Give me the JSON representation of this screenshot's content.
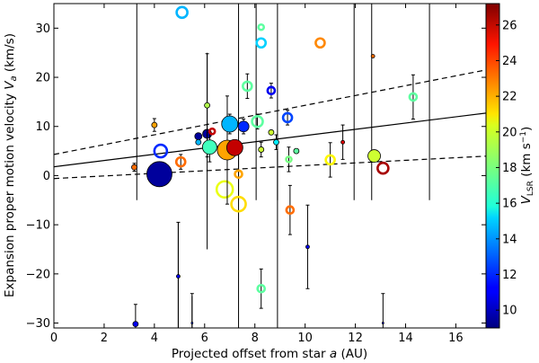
{
  "chart_data": {
    "type": "scatter",
    "xlabel_parts": [
      "Projected offset from star ",
      "a",
      " (AU)"
    ],
    "ylabel_parts": [
      "Expansion proper motion velocity ",
      "V",
      "a",
      " (km/s)"
    ],
    "colorbar_label_parts": [
      "V",
      "LSR",
      " (km s",
      "−1",
      ")"
    ],
    "xlim": [
      0,
      17.2
    ],
    "ylim": [
      -31,
      35
    ],
    "colormap": "jet",
    "clim": [
      9,
      27.2
    ],
    "xticks": [
      0,
      2,
      4,
      6,
      8,
      10,
      12,
      14,
      16
    ],
    "yticks": [
      -30,
      -20,
      -10,
      0,
      10,
      20,
      30
    ],
    "cticks": [
      10,
      12,
      14,
      16,
      18,
      20,
      22,
      24,
      26
    ],
    "fit_line": {
      "intercept": 1.8,
      "slope": 0.635
    },
    "envelope": {
      "upper": {
        "intercept": 4.3,
        "slope": 1.0
      },
      "lower": {
        "intercept": -0.6,
        "slope": 0.265
      }
    },
    "points": [
      {
        "x": 3.2,
        "y": 1.7,
        "v": 23,
        "sz": 3,
        "filled": true,
        "err": 0.8
      },
      {
        "x": 3.25,
        "y": -30.2,
        "v": 11,
        "sz": 3,
        "filled": true,
        "err": 4
      },
      {
        "x": 4.2,
        "y": 0.3,
        "v": 9.5,
        "sz": 14,
        "filled": true,
        "err": 0
      },
      {
        "x": 4.25,
        "y": 5.0,
        "v": 12,
        "sz": 7,
        "filled": false,
        "err": 0
      },
      {
        "x": 4.0,
        "y": 10.3,
        "v": 22,
        "sz": 3,
        "filled": true,
        "err": 1.3
      },
      {
        "x": 4.95,
        "y": -20.5,
        "v": 11,
        "sz": 2,
        "filled": true,
        "err": 11
      },
      {
        "x": 5.05,
        "y": 2.8,
        "v": 23,
        "sz": 5,
        "filled": false,
        "err": 1.5
      },
      {
        "x": 5.1,
        "y": 33.2,
        "v": 14.5,
        "sz": 6,
        "filled": false,
        "err": 0
      },
      {
        "x": 5.5,
        "y": -30,
        "v": 12,
        "sz": 1,
        "filled": true,
        "err": 6
      },
      {
        "x": 5.75,
        "y": 8.0,
        "v": 9.5,
        "sz": 4,
        "filled": true,
        "err": 0
      },
      {
        "x": 5.75,
        "y": 6.8,
        "v": 14.5,
        "sz": 3,
        "filled": true,
        "err": 0
      },
      {
        "x": 6.1,
        "y": 8.5,
        "v": 9.5,
        "sz": 5,
        "filled": true,
        "err": 0
      },
      {
        "x": 6.1,
        "y": 14.3,
        "v": 19,
        "sz": 3,
        "filled": true,
        "err": 10.5
      },
      {
        "x": 6.2,
        "y": 5.8,
        "v": 17,
        "sz": 8,
        "filled": true,
        "err": 3
      },
      {
        "x": 6.3,
        "y": 9.0,
        "v": 26,
        "sz": 3,
        "filled": false,
        "err": 0
      },
      {
        "x": 6.8,
        "y": -2.8,
        "v": 20,
        "sz": 9,
        "filled": false,
        "err": 0
      },
      {
        "x": 6.9,
        "y": 5.2,
        "v": 22,
        "sz": 11,
        "filled": true,
        "err": 11
      },
      {
        "x": 7.0,
        "y": 10.5,
        "v": 14.5,
        "sz": 9,
        "filled": true,
        "err": 2
      },
      {
        "x": 7.2,
        "y": 5.7,
        "v": 26,
        "sz": 9,
        "filled": true,
        "err": 0
      },
      {
        "x": 7.35,
        "y": 0.3,
        "v": 22,
        "sz": 4,
        "filled": false,
        "err": 0
      },
      {
        "x": 7.35,
        "y": -5.8,
        "v": 21,
        "sz": 8,
        "filled": false,
        "err": 0
      },
      {
        "x": 7.55,
        "y": 10.0,
        "v": 12,
        "sz": 6,
        "filled": true,
        "err": 1.5
      },
      {
        "x": 7.7,
        "y": 18.2,
        "v": 17.5,
        "sz": 5,
        "filled": false,
        "err": 2.5
      },
      {
        "x": 8.1,
        "y": 11.0,
        "v": 17.5,
        "sz": 6,
        "filled": false,
        "err": 1.5
      },
      {
        "x": 8.25,
        "y": 30.2,
        "v": 17.5,
        "sz": 3,
        "filled": false,
        "err": 0
      },
      {
        "x": 8.25,
        "y": 27.0,
        "v": 15,
        "sz": 5,
        "filled": false,
        "err": 0
      },
      {
        "x": 8.25,
        "y": 5.3,
        "v": 19.5,
        "sz": 3,
        "filled": true,
        "err": 1.5
      },
      {
        "x": 8.25,
        "y": -23.0,
        "v": 17.5,
        "sz": 4,
        "filled": false,
        "err": 4
      },
      {
        "x": 8.65,
        "y": 8.8,
        "v": 19.5,
        "sz": 3,
        "filled": true,
        "err": 0
      },
      {
        "x": 8.65,
        "y": 17.3,
        "v": 11,
        "sz": 4,
        "filled": false,
        "err": 1.5
      },
      {
        "x": 8.85,
        "y": 6.8,
        "v": 15.5,
        "sz": 3,
        "filled": true,
        "err": 1.5
      },
      {
        "x": 9.3,
        "y": 11.8,
        "v": 12.5,
        "sz": 5,
        "filled": false,
        "err": 1.5
      },
      {
        "x": 9.35,
        "y": 3.3,
        "v": 18,
        "sz": 3,
        "filled": false,
        "err": 2.5
      },
      {
        "x": 9.4,
        "y": -7.0,
        "v": 23,
        "sz": 4,
        "filled": false,
        "err": 5
      },
      {
        "x": 9.65,
        "y": 5.0,
        "v": 17.5,
        "sz": 3,
        "filled": true,
        "err": 0
      },
      {
        "x": 10.1,
        "y": -14.5,
        "v": 11,
        "sz": 2,
        "filled": true,
        "err": 8.5
      },
      {
        "x": 10.6,
        "y": 27.0,
        "v": 22.5,
        "sz": 5,
        "filled": false,
        "err": 0
      },
      {
        "x": 11.0,
        "y": 3.2,
        "v": 20.5,
        "sz": 5,
        "filled": false,
        "err": 3.5
      },
      {
        "x": 11.5,
        "y": 6.8,
        "v": 25.5,
        "sz": 2,
        "filled": true,
        "err": 3.5
      },
      {
        "x": 12.7,
        "y": 24.3,
        "v": 23,
        "sz": 2,
        "filled": true,
        "err": 0
      },
      {
        "x": 12.75,
        "y": 4.0,
        "v": 19.5,
        "sz": 7,
        "filled": true,
        "err": 0
      },
      {
        "x": 13.1,
        "y": -30,
        "v": 11,
        "sz": 1,
        "filled": true,
        "err": 6
      },
      {
        "x": 13.1,
        "y": 1.5,
        "v": 26.5,
        "sz": 6,
        "filled": false,
        "err": 0
      },
      {
        "x": 14.3,
        "y": 16.0,
        "v": 17.5,
        "sz": 4,
        "filled": false,
        "err": 4.5
      }
    ],
    "tall_bars": [
      {
        "x": 3.3,
        "ytop": 35
      },
      {
        "x": 4.95,
        "ytop": -9.5
      },
      {
        "x": 5.5,
        "ytop": -24.5
      },
      {
        "x": 6.1,
        "ytop": 25
      },
      {
        "x": 7.35,
        "ytop": 35
      },
      {
        "x": 7.35,
        "ybottom": -31
      },
      {
        "x": 8.05,
        "ytop": 35
      },
      {
        "x": 8.9,
        "ytop": 35
      },
      {
        "x": 8.9,
        "ybottom": -31
      },
      {
        "x": 11.95,
        "ytop": 35
      },
      {
        "x": 12.65,
        "ytop": 35
      },
      {
        "x": 14.95,
        "ytop": 35
      }
    ]
  }
}
